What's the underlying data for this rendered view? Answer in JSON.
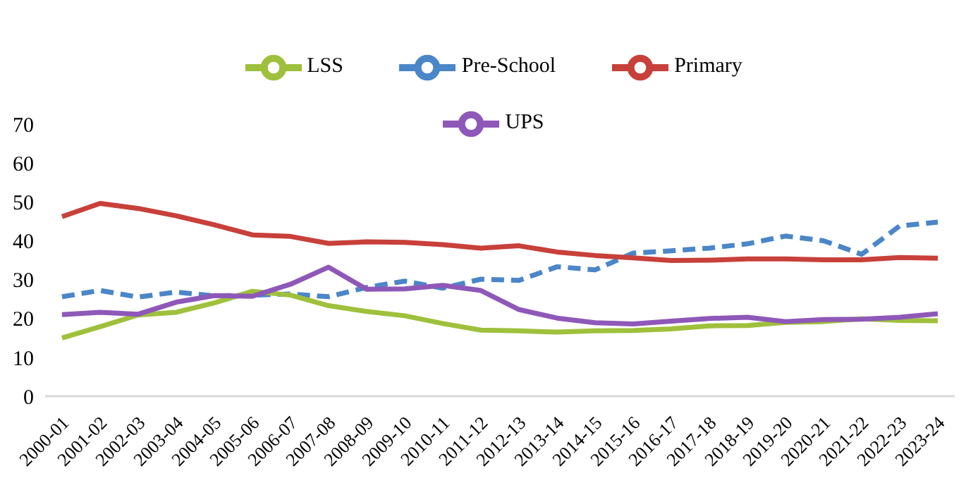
{
  "chart_data": {
    "type": "line",
    "categories": [
      "2000-01",
      "2001-02",
      "2002-03",
      "2003-04",
      "2004-05",
      "2005-06",
      "2006-07",
      "2007-08",
      "2008-09",
      "2009-10",
      "2010-11",
      "2011-12",
      "2012-13",
      "2013-14",
      "2014-15",
      "2015-16",
      "2016-17",
      "2017-18",
      "2018-19",
      "2019-20",
      "2020-21",
      "2021-22",
      "2022-23",
      "2023-24"
    ],
    "series": [
      {
        "name": "Pre-School",
        "color": "#4a86c8",
        "line_style": "dashed",
        "values": [
          25.6,
          27.2,
          25.5,
          26.8,
          25.8,
          26,
          26.3,
          25.6,
          28,
          29.6,
          27.8,
          30.1,
          29.8,
          33.3,
          32.5,
          36.8,
          37.4,
          38.1,
          39.2,
          41.2,
          40,
          36.5,
          43.8,
          44.8
        ]
      },
      {
        "name": "Primary",
        "color": "#c8403a",
        "values": [
          46.2,
          49.6,
          48.3,
          46.4,
          44.1,
          41.5,
          41.1,
          39.3,
          39.7,
          39.6,
          39,
          38.1,
          38.7,
          37.1,
          36.2,
          35.6,
          34.9,
          35,
          35.3,
          35.3,
          35.1,
          35.1,
          35.7,
          35.5
        ]
      },
      {
        "name": "LSS",
        "color": "#9fc03c",
        "values": [
          15,
          17.9,
          20.9,
          21.6,
          24,
          27,
          26,
          23.3,
          21.8,
          20.7,
          18.7,
          17,
          16.8,
          16.5,
          16.8,
          16.9,
          17.3,
          18.1,
          18.2,
          19,
          19.2,
          19.9,
          19.5,
          19.4
        ]
      },
      {
        "name": "UPS",
        "color": "#8e58b8",
        "values": [
          21,
          21.6,
          21.1,
          24.2,
          25.9,
          25.7,
          28.8,
          33.2,
          27.5,
          27.6,
          28.5,
          27.2,
          22.3,
          20.1,
          18.9,
          18.6,
          19.3,
          20,
          20.3,
          19.2,
          19.7,
          19.8,
          20.3,
          21.2
        ]
      }
    ],
    "ylim": [
      0,
      70
    ],
    "yticks": [
      0,
      10,
      20,
      30,
      40,
      50,
      60,
      70
    ],
    "grid": false,
    "legend": "top",
    "marker": "none",
    "line_style": "solid"
  }
}
